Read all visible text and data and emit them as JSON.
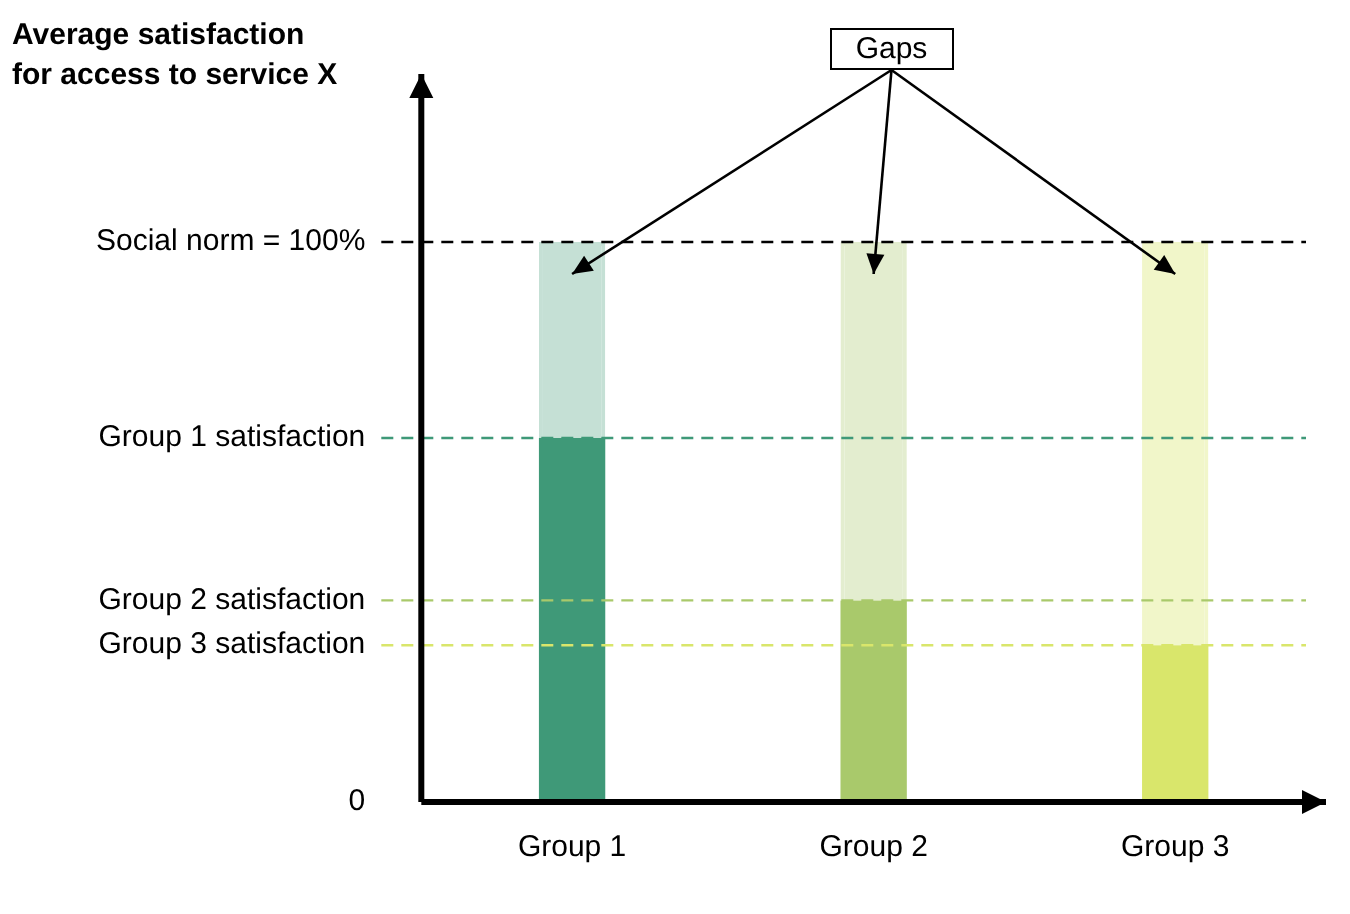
{
  "chart_data": {
    "type": "bar",
    "stacked": true,
    "ylabel": "Average satisfaction\nfor access to service X",
    "categories": [
      "Group 1",
      "Group 2",
      "Group 3"
    ],
    "series": [
      {
        "colors": [
          "#3f9978",
          "#a9c96b",
          "#d9e66b"
        ],
        "values": [
          65,
          36,
          28
        ]
      },
      {
        "colors": [
          "#c5e0d5",
          "#e3edcf",
          "#f1f6c9"
        ],
        "values": [
          35,
          64,
          72
        ]
      }
    ],
    "ylim": [
      0,
      130
    ],
    "yticks": [
      0,
      {
        "value": 28,
        "label": "Group 3 satisfaction"
      },
      {
        "value": 36,
        "label": "Group 2 satisfaction"
      },
      {
        "value": 65,
        "label": "Group 1 satisfaction"
      },
      {
        "value": 100,
        "label": "Social norm = 100%"
      }
    ],
    "ref_lines": [
      {
        "axis": "y",
        "value": 100,
        "color": "#000000",
        "line_style": "dashed"
      },
      {
        "axis": "y",
        "value": 65,
        "color": "#3f9978",
        "line_style": "dashed"
      },
      {
        "axis": "y",
        "value": 36,
        "color": "#a9c96b",
        "line_style": "dashed"
      },
      {
        "axis": "y",
        "value": 28,
        "color": "#d9e66b",
        "line_style": "dashed"
      }
    ],
    "annotations": [
      "Gaps"
    ],
    "grid": false,
    "legend": false
  }
}
